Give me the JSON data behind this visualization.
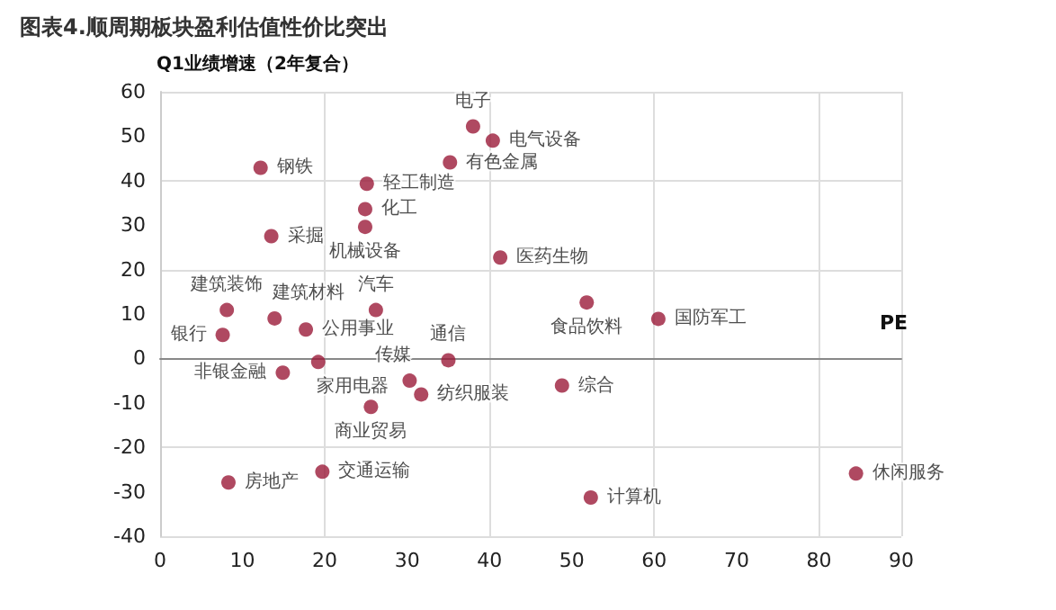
{
  "chart_data": {
    "type": "scatter",
    "title": "图表4.顺周期板块盈利估值性价比突出",
    "xlabel": "PE",
    "ylabel": "Q1业绩增速（2年复合）",
    "x": [
      38.0,
      40.4,
      35.2,
      12.2,
      25.1,
      24.9,
      24.9,
      13.5,
      41.3,
      13.9,
      8.1,
      7.6,
      17.7,
      26.2,
      51.8,
      60.5,
      19.2,
      35.0,
      30.3,
      14.9,
      25.6,
      31.7,
      48.8,
      8.3,
      19.7,
      52.3,
      84.5
    ],
    "values": [
      52.2,
      49.0,
      44.1,
      42.9,
      39.3,
      33.6,
      29.6,
      27.5,
      22.7,
      9.0,
      10.9,
      5.3,
      6.5,
      10.9,
      12.6,
      8.9,
      -0.8,
      -0.4,
      -5.0,
      -3.2,
      -10.9,
      -8.1,
      -6.1,
      -27.9,
      -25.5,
      -31.3,
      -25.9
    ],
    "color": "#9b1b3a",
    "marker": "circle",
    "xlim": [
      0,
      90
    ],
    "xticks": [
      0,
      10,
      20,
      30,
      40,
      50,
      60,
      70,
      80,
      90
    ],
    "ylim": [
      -40,
      60
    ],
    "yticks": [
      -40,
      -30,
      -20,
      -10,
      0,
      10,
      20,
      30,
      40,
      50,
      60
    ],
    "grid": true,
    "annotations": [
      {
        "text": "电子",
        "x": 38.0,
        "y": 52.2
      },
      {
        "text": "电气设备",
        "x": 40.4,
        "y": 49.0
      },
      {
        "text": "有色金属",
        "x": 35.2,
        "y": 44.1
      },
      {
        "text": "钢铁",
        "x": 12.2,
        "y": 42.9
      },
      {
        "text": "轻工制造",
        "x": 25.1,
        "y": 39.3
      },
      {
        "text": "化工",
        "x": 24.9,
        "y": 33.6
      },
      {
        "text": "机械设备",
        "x": 24.9,
        "y": 29.6
      },
      {
        "text": "采掘",
        "x": 13.5,
        "y": 27.5
      },
      {
        "text": "医药生物",
        "x": 41.3,
        "y": 22.7
      },
      {
        "text": "建筑材料",
        "x": 13.9,
        "y": 9.0
      },
      {
        "text": "建筑装饰",
        "x": 8.1,
        "y": 10.9
      },
      {
        "text": "银行",
        "x": 7.6,
        "y": 5.3
      },
      {
        "text": "公用事业",
        "x": 17.7,
        "y": 6.5
      },
      {
        "text": "汽车",
        "x": 26.2,
        "y": 10.9
      },
      {
        "text": "食品饮料",
        "x": 51.8,
        "y": 12.6
      },
      {
        "text": "国防军工",
        "x": 60.5,
        "y": 8.9
      },
      {
        "text": "家用电器",
        "x": 19.2,
        "y": -0.8
      },
      {
        "text": "通信",
        "x": 35.0,
        "y": -0.4
      },
      {
        "text": "传媒",
        "x": 30.3,
        "y": -5.0
      },
      {
        "text": "非银金融",
        "x": 14.9,
        "y": -3.2
      },
      {
        "text": "商业贸易",
        "x": 25.6,
        "y": -10.9
      },
      {
        "text": "纺织服装",
        "x": 31.7,
        "y": -8.1
      },
      {
        "text": "综合",
        "x": 48.8,
        "y": -6.1
      },
      {
        "text": "房地产",
        "x": 8.3,
        "y": -27.9
      },
      {
        "text": "交通运输",
        "x": 19.7,
        "y": -25.5
      },
      {
        "text": "计算机",
        "x": 52.3,
        "y": -31.3
      },
      {
        "text": "休闲服务",
        "x": 84.5,
        "y": -25.9
      }
    ]
  }
}
